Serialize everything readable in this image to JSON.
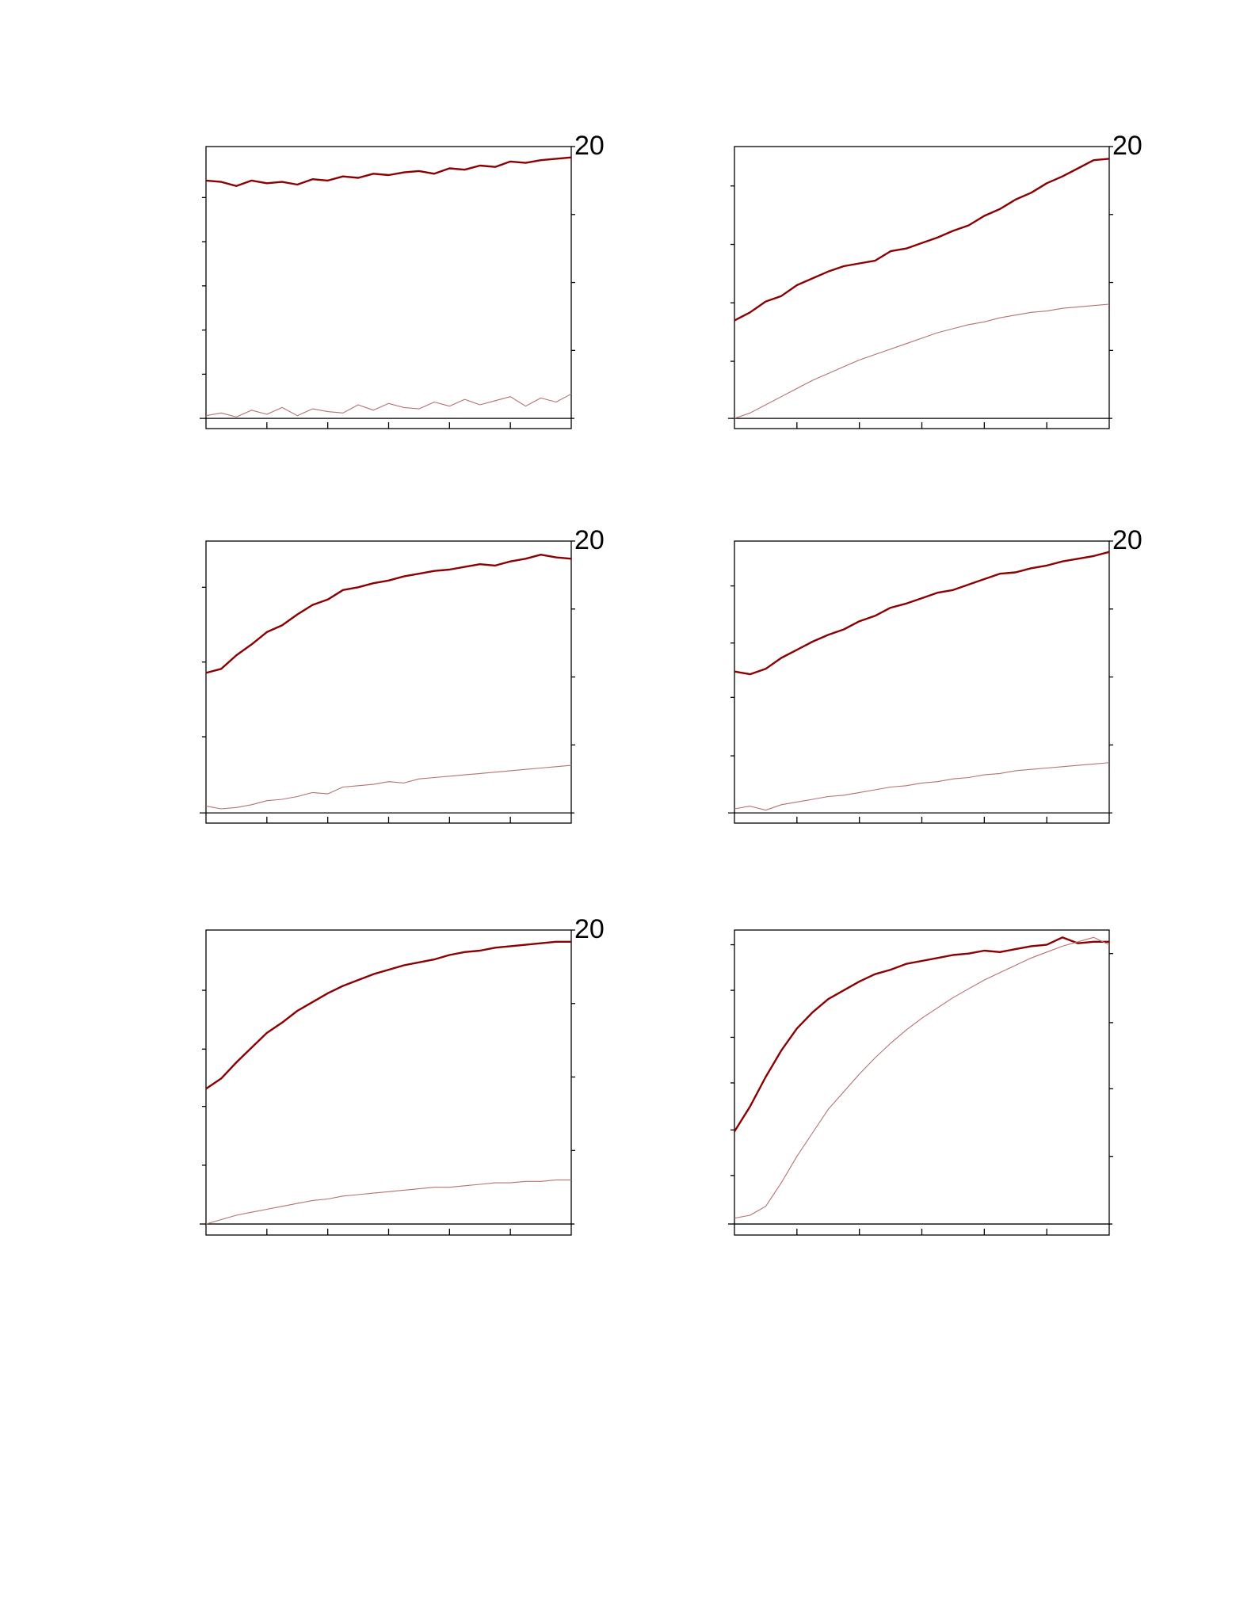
{
  "chart_data": [
    {
      "type": "line",
      "xlim": [
        0,
        6
      ],
      "ylim": [
        -0.75,
        20
      ],
      "xticks": [
        {
          "value": 1,
          "label": null
        },
        {
          "value": 2,
          "label": null
        },
        {
          "value": 3,
          "label": null
        },
        {
          "value": 4,
          "label": null
        },
        {
          "value": 5,
          "label": null
        }
      ],
      "yticks": [
        {
          "value": 3.25,
          "label": null
        },
        {
          "value": 6.5,
          "label": null
        },
        {
          "value": 9.75,
          "label": null
        },
        {
          "value": 13,
          "label": null
        },
        {
          "value": 16.25,
          "label": null
        }
      ],
      "y2ticks": [
        {
          "value": 5,
          "label": null
        },
        {
          "value": 10,
          "label": null
        },
        {
          "value": 15,
          "label": null
        },
        20
      ],
      "x": [
        0,
        0.25,
        0.5,
        0.75,
        1,
        1.25,
        1.5,
        1.75,
        2,
        2.25,
        2.5,
        2.75,
        3,
        3.25,
        3.5,
        3.75,
        4,
        4.25,
        4.5,
        4.75,
        5,
        5.25,
        5.5,
        5.75,
        6
      ],
      "series": [
        {
          "color": "#8b0000",
          "values": [
            17.5,
            17.4,
            17.1,
            17.5,
            17.3,
            17.4,
            17.2,
            17.6,
            17.5,
            17.8,
            17.7,
            18.0,
            17.9,
            18.1,
            18.2,
            18.0,
            18.4,
            18.3,
            18.6,
            18.5,
            18.9,
            18.8,
            19.0,
            19.1,
            19.2
          ]
        },
        {
          "color": "#b87070",
          "values": [
            0.2,
            0.4,
            0.1,
            0.6,
            0.3,
            0.8,
            0.2,
            0.7,
            0.5,
            0.4,
            1.0,
            0.6,
            1.1,
            0.8,
            0.7,
            1.2,
            0.9,
            1.4,
            1.0,
            1.3,
            1.6,
            0.9,
            1.5,
            1.2,
            1.8
          ]
        }
      ]
    },
    {
      "type": "line",
      "xlim": [
        0,
        6
      ],
      "ylim": [
        -0.75,
        20
      ],
      "xticks": [
        {
          "value": 1,
          "label": null
        },
        {
          "value": 2,
          "label": null
        },
        {
          "value": 3,
          "label": null
        },
        {
          "value": 4,
          "label": null
        },
        {
          "value": 5,
          "label": null
        }
      ],
      "yticks": [
        {
          "value": 4.2,
          "label": null
        },
        {
          "value": 8.5,
          "label": null
        },
        {
          "value": 12.8,
          "label": null
        },
        {
          "value": 17.1,
          "label": null
        }
      ],
      "y2ticks": [
        {
          "value": 5,
          "label": null
        },
        {
          "value": 10,
          "label": null
        },
        {
          "value": 15,
          "label": null
        },
        20
      ],
      "x": [
        0,
        0.25,
        0.5,
        0.75,
        1,
        1.25,
        1.5,
        1.75,
        2,
        2.25,
        2.5,
        2.75,
        3,
        3.25,
        3.5,
        3.75,
        4,
        4.25,
        4.5,
        4.75,
        5,
        5.25,
        5.5,
        5.75,
        6
      ],
      "series": [
        {
          "color": "#8b0000",
          "values": [
            7.2,
            7.8,
            8.6,
            9.0,
            9.8,
            10.3,
            10.8,
            11.2,
            11.4,
            11.6,
            12.3,
            12.5,
            12.9,
            13.3,
            13.8,
            14.2,
            14.9,
            15.4,
            16.1,
            16.6,
            17.3,
            17.8,
            18.4,
            19.0,
            19.1
          ]
        },
        {
          "color": "#b87070",
          "values": [
            0,
            0.4,
            1.0,
            1.6,
            2.2,
            2.8,
            3.3,
            3.8,
            4.3,
            4.7,
            5.1,
            5.5,
            5.9,
            6.3,
            6.6,
            6.9,
            7.1,
            7.4,
            7.6,
            7.8,
            7.9,
            8.1,
            8.2,
            8.3,
            8.4
          ]
        }
      ]
    },
    {
      "type": "line",
      "xlim": [
        0,
        6
      ],
      "ylim": [
        -0.75,
        20
      ],
      "xticks": [
        {
          "value": 1,
          "label": null
        },
        {
          "value": 2,
          "label": null
        },
        {
          "value": 3,
          "label": null
        },
        {
          "value": 4,
          "label": null
        },
        {
          "value": 5,
          "label": null
        }
      ],
      "yticks": [
        {
          "value": 5.6,
          "label": null
        },
        {
          "value": 11.1,
          "label": null
        },
        {
          "value": 16.6,
          "label": null
        }
      ],
      "y2ticks": [
        {
          "value": 5,
          "label": null
        },
        {
          "value": 10,
          "label": null
        },
        {
          "value": 15,
          "label": null
        },
        20
      ],
      "x": [
        0,
        0.25,
        0.5,
        0.75,
        1,
        1.25,
        1.5,
        1.75,
        2,
        2.25,
        2.5,
        2.75,
        3,
        3.25,
        3.5,
        3.75,
        4,
        4.25,
        4.5,
        4.75,
        5,
        5.25,
        5.5,
        5.75,
        6
      ],
      "series": [
        {
          "color": "#8b0000",
          "values": [
            10.3,
            10.6,
            11.6,
            12.4,
            13.3,
            13.8,
            14.6,
            15.3,
            15.7,
            16.4,
            16.6,
            16.9,
            17.1,
            17.4,
            17.6,
            17.8,
            17.9,
            18.1,
            18.3,
            18.2,
            18.5,
            18.7,
            19.0,
            18.8,
            18.7
          ]
        },
        {
          "color": "#b87070",
          "values": [
            0.5,
            0.3,
            0.4,
            0.6,
            0.9,
            1.0,
            1.2,
            1.5,
            1.4,
            1.9,
            2.0,
            2.1,
            2.3,
            2.2,
            2.5,
            2.6,
            2.7,
            2.8,
            2.9,
            3.0,
            3.1,
            3.2,
            3.3,
            3.4,
            3.5
          ]
        }
      ]
    },
    {
      "type": "line",
      "xlim": [
        0,
        6
      ],
      "ylim": [
        -0.75,
        20
      ],
      "xticks": [
        {
          "value": 1,
          "label": null
        },
        {
          "value": 2,
          "label": null
        },
        {
          "value": 3,
          "label": null
        },
        {
          "value": 4,
          "label": null
        },
        {
          "value": 5,
          "label": null
        }
      ],
      "yticks": [
        {
          "value": 4.2,
          "label": null
        },
        {
          "value": 8.5,
          "label": null
        },
        {
          "value": 12.5,
          "label": null
        },
        {
          "value": 16.7,
          "label": null
        }
      ],
      "y2ticks": [
        {
          "value": 5,
          "label": null
        },
        {
          "value": 10,
          "label": null
        },
        {
          "value": 15,
          "label": null
        },
        20
      ],
      "x": [
        0,
        0.25,
        0.5,
        0.75,
        1,
        1.25,
        1.5,
        1.75,
        2,
        2.25,
        2.5,
        2.75,
        3,
        3.25,
        3.5,
        3.75,
        4,
        4.25,
        4.5,
        4.75,
        5,
        5.25,
        5.5,
        5.75,
        6
      ],
      "series": [
        {
          "color": "#8b0000",
          "values": [
            10.4,
            10.2,
            10.6,
            11.4,
            12.0,
            12.6,
            13.1,
            13.5,
            14.1,
            14.5,
            15.1,
            15.4,
            15.8,
            16.2,
            16.4,
            16.8,
            17.2,
            17.6,
            17.7,
            18.0,
            18.2,
            18.5,
            18.7,
            18.9,
            19.2
          ]
        },
        {
          "color": "#b87070",
          "values": [
            0.3,
            0.5,
            0.2,
            0.6,
            0.8,
            1.0,
            1.2,
            1.3,
            1.5,
            1.7,
            1.9,
            2.0,
            2.2,
            2.3,
            2.5,
            2.6,
            2.8,
            2.9,
            3.1,
            3.2,
            3.3,
            3.4,
            3.5,
            3.6,
            3.7
          ]
        }
      ]
    },
    {
      "type": "line",
      "xlim": [
        0,
        6
      ],
      "ylim": [
        -0.75,
        20
      ],
      "xticks": [
        {
          "value": 1,
          "label": null
        },
        {
          "value": 2,
          "label": null
        },
        {
          "value": 3,
          "label": null
        },
        {
          "value": 4,
          "label": null
        },
        {
          "value": 5,
          "label": null
        }
      ],
      "yticks": [
        {
          "value": 4.0,
          "label": null
        },
        {
          "value": 8.0,
          "label": null
        },
        {
          "value": 11.9,
          "label": null
        },
        {
          "value": 15.9,
          "label": null
        }
      ],
      "y2ticks": [
        {
          "value": 5,
          "label": null
        },
        {
          "value": 10,
          "label": null
        },
        {
          "value": 15,
          "label": null
        },
        20
      ],
      "x": [
        0,
        0.25,
        0.5,
        0.75,
        1,
        1.25,
        1.5,
        1.75,
        2,
        2.25,
        2.5,
        2.75,
        3,
        3.25,
        3.5,
        3.75,
        4,
        4.25,
        4.5,
        4.75,
        5,
        5.25,
        5.5,
        5.75,
        6
      ],
      "series": [
        {
          "color": "#8b0000",
          "values": [
            9.2,
            9.9,
            11.0,
            12.0,
            13.0,
            13.7,
            14.5,
            15.1,
            15.7,
            16.2,
            16.6,
            17.0,
            17.3,
            17.6,
            17.8,
            18.0,
            18.3,
            18.5,
            18.6,
            18.8,
            18.9,
            19.0,
            19.1,
            19.2,
            19.2
          ]
        },
        {
          "color": "#b87070",
          "values": [
            0,
            0.3,
            0.6,
            0.8,
            1.0,
            1.2,
            1.4,
            1.6,
            1.7,
            1.9,
            2.0,
            2.1,
            2.2,
            2.3,
            2.4,
            2.5,
            2.5,
            2.6,
            2.7,
            2.8,
            2.8,
            2.9,
            2.9,
            3.0,
            3.0
          ]
        }
      ]
    },
    {
      "type": "line",
      "xlim": [
        0,
        6
      ],
      "ylim": [
        -0.75,
        20
      ],
      "xticks": [
        {
          "value": 1,
          "label": null
        },
        {
          "value": 2,
          "label": null
        },
        {
          "value": 3,
          "label": null
        },
        {
          "value": 4,
          "label": null
        },
        {
          "value": 5,
          "label": null
        }
      ],
      "yticks": [
        {
          "value": 3.3,
          "label": null
        },
        {
          "value": 6.4,
          "label": null
        },
        {
          "value": 9.6,
          "label": null
        },
        {
          "value": 12.7,
          "label": null
        },
        {
          "value": 15.9,
          "label": null
        },
        {
          "value": 19,
          "label": null
        }
      ],
      "y2ticks": [
        {
          "value": 4.6,
          "label": null
        },
        {
          "value": 9.2,
          "label": null
        },
        {
          "value": 13.7,
          "label": null
        },
        {
          "value": 18.4,
          "label": null
        }
      ],
      "x": [
        0,
        0.25,
        0.5,
        0.75,
        1,
        1.25,
        1.5,
        1.75,
        2,
        2.25,
        2.5,
        2.75,
        3,
        3.25,
        3.5,
        3.75,
        4,
        4.25,
        4.5,
        4.75,
        5,
        5.25,
        5.5,
        5.75,
        6
      ],
      "series": [
        {
          "color": "#8b0000",
          "values": [
            6.3,
            8.0,
            10.0,
            11.8,
            13.3,
            14.4,
            15.3,
            15.9,
            16.5,
            17.0,
            17.3,
            17.7,
            17.9,
            18.1,
            18.3,
            18.4,
            18.6,
            18.5,
            18.7,
            18.9,
            19.0,
            19.5,
            19.1,
            19.2,
            19.2
          ]
        },
        {
          "color": "#b87070",
          "values": [
            0.4,
            0.6,
            1.2,
            2.8,
            4.6,
            6.2,
            7.8,
            9.0,
            10.2,
            11.3,
            12.3,
            13.2,
            14.0,
            14.7,
            15.4,
            16.0,
            16.6,
            17.1,
            17.6,
            18.1,
            18.5,
            18.9,
            19.2,
            19.5,
            19.0
          ]
        }
      ]
    }
  ]
}
